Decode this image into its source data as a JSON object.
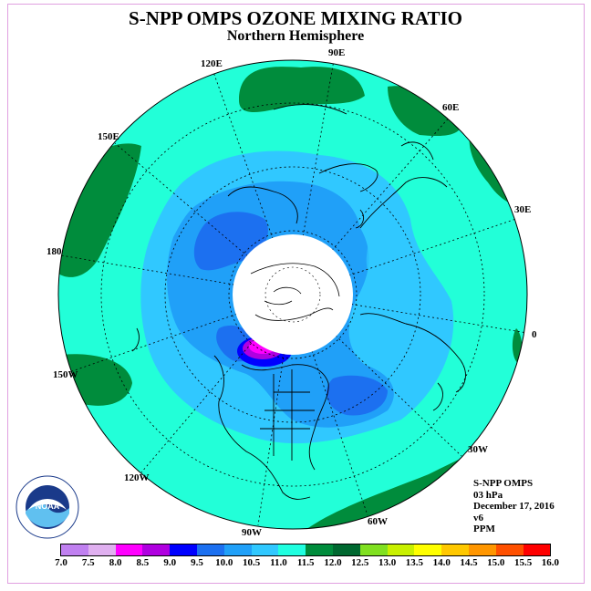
{
  "header": {
    "title": "S-NPP OMPS OZONE MIXING RATIO",
    "subtitle": "Northern Hemisphere"
  },
  "info": {
    "line1": "S-NPP OMPS",
    "line2": "03 hPa",
    "line3": "December 17, 2016",
    "line4": "v6",
    "line5": "PPM"
  },
  "longitudes": {
    "e90": "90E",
    "e120": "120E",
    "e60": "60E",
    "e150": "150E",
    "e30": "30E",
    "d180": "180",
    "d0": "0",
    "w150": "150W",
    "w30": "30W",
    "w120": "120W",
    "w60": "60W",
    "w90": "90W"
  },
  "colorbar": {
    "ticks": [
      "7.0",
      "7.5",
      "8.0",
      "8.5",
      "9.0",
      "9.5",
      "10.0",
      "10.5",
      "11.0",
      "11.5",
      "12.0",
      "12.5",
      "13.0",
      "13.5",
      "14.0",
      "14.5",
      "15.0",
      "15.5",
      "16.0"
    ],
    "colors": [
      "#c080f0",
      "#e0b0f0",
      "#ff00ff",
      "#b000e0",
      "#0000ff",
      "#1c70f0",
      "#20a0f8",
      "#30c8ff",
      "#20ffe0",
      "#008c3c",
      "#006830",
      "#80e020",
      "#c8f000",
      "#ffff00",
      "#ffc800",
      "#ff9600",
      "#ff5000",
      "#ff0000",
      "#8c4c30"
    ]
  },
  "colors": {
    "base": "#22ffd8",
    "level_10": "#30c8ff",
    "level_95": "#20a0f8",
    "level_9": "#1c70f0",
    "high": "#008c3c",
    "purple": "#b000e0",
    "magenta": "#ff00ff"
  },
  "logo": {
    "text": "NOAA"
  }
}
